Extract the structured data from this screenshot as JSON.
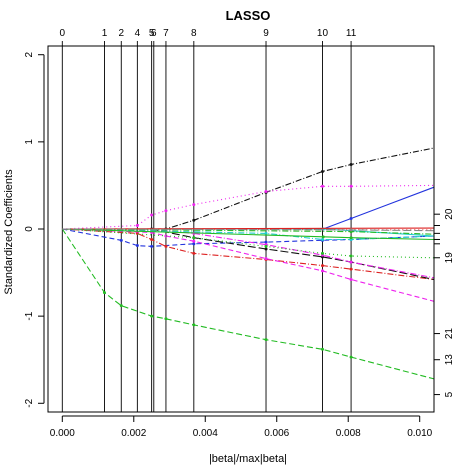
{
  "chart_data": {
    "type": "line",
    "title": "LASSO",
    "xlabel": "|beta|/max|beta|",
    "ylabel": "Standardized Coefficients",
    "xlim": [
      -0.0004,
      0.0104
    ],
    "ylim": [
      -2.1,
      2.1
    ],
    "x_ticks": [
      "0.000",
      "0.002",
      "0.004",
      "0.006",
      "0.008",
      "0.010"
    ],
    "x_tick_values": [
      0,
      0.002,
      0.004,
      0.006,
      0.008,
      0.01
    ],
    "y_ticks": [
      "-2",
      "-1",
      "0",
      "1",
      "2"
    ],
    "y_tick_values": [
      -2,
      -1,
      0,
      1,
      2
    ],
    "step_labels": [
      "0",
      "1",
      "2",
      "4",
      "5",
      "6",
      "7",
      "8",
      "9",
      "10",
      "11"
    ],
    "step_positions": [
      0.0,
      0.00118,
      0.00165,
      0.0021,
      0.0025,
      0.00256,
      0.0029,
      0.00368,
      0.0057,
      0.00728,
      0.00808
    ],
    "right_labels": [
      "20",
      "19",
      "21",
      "13",
      "5"
    ],
    "right_label_values": [
      0.17,
      -0.33,
      -1.2,
      -1.5,
      -1.9
    ],
    "grid": false,
    "series": [
      {
        "color": "#22bb22",
        "dash": "6,3",
        "x": [
          0,
          0.00118,
          0.00165,
          0.0025,
          0.0029,
          0.00368,
          0.0057,
          0.00728,
          0.00808,
          0.0104
        ],
        "y": [
          0,
          -0.73,
          -0.88,
          -1.0,
          -1.03,
          -1.1,
          -1.27,
          -1.38,
          -1.47,
          -1.72
        ]
      },
      {
        "color": "#111111",
        "dash": "6,2,1,2",
        "x": [
          0,
          0.0029,
          0.00368,
          0.0057,
          0.00728,
          0.00808,
          0.0104
        ],
        "y": [
          0,
          0,
          0.1,
          0.42,
          0.66,
          0.74,
          0.93
        ]
      },
      {
        "color": "#ee22ee",
        "dash": "1,3",
        "x": [
          0,
          0.0021,
          0.0025,
          0.0029,
          0.00368,
          0.0057,
          0.00728,
          0.00808,
          0.0104
        ],
        "y": [
          0,
          0.04,
          0.16,
          0.21,
          0.28,
          0.43,
          0.49,
          0.49,
          0.5
        ]
      },
      {
        "color": "#2233dd",
        "dash": "",
        "x": [
          0,
          0.0073,
          0.00808,
          0.0104
        ],
        "y": [
          0,
          0,
          0.12,
          0.48
        ]
      },
      {
        "color": "#2233dd",
        "dash": "5,3",
        "x": [
          0,
          0.00165,
          0.0021,
          0.0025,
          0.00368,
          0.0057,
          0.00728,
          0.00808,
          0.0104
        ],
        "y": [
          0,
          -0.13,
          -0.19,
          -0.2,
          -0.17,
          -0.15,
          -0.13,
          -0.12,
          -0.08
        ]
      },
      {
        "color": "#dd2222",
        "dash": "6,2,1,2",
        "x": [
          0,
          0.0021,
          0.0025,
          0.0029,
          0.00368,
          0.0057,
          0.00728,
          0.00808,
          0.0104
        ],
        "y": [
          0,
          -0.05,
          -0.12,
          -0.2,
          -0.28,
          -0.35,
          -0.42,
          -0.46,
          -0.58
        ]
      },
      {
        "color": "#ee22ee",
        "dash": "5,3",
        "x": [
          0,
          0.0025,
          0.0029,
          0.00368,
          0.0057,
          0.00728,
          0.00808,
          0.0104
        ],
        "y": [
          0,
          -0.04,
          -0.08,
          -0.14,
          -0.34,
          -0.48,
          -0.58,
          -0.83
        ]
      },
      {
        "color": "#111111",
        "dash": "8,3",
        "x": [
          0,
          0.0025,
          0.00368,
          0.0057,
          0.00728,
          0.00808,
          0.0104
        ],
        "y": [
          0,
          0,
          -0.1,
          -0.23,
          -0.32,
          -0.38,
          -0.58
        ]
      },
      {
        "color": "#ee22ee",
        "dash": "6,2,1,2",
        "x": [
          0,
          0.0029,
          0.00368,
          0.0057,
          0.00728,
          0.00808,
          0.0104
        ],
        "y": [
          0,
          -0.02,
          -0.05,
          -0.18,
          -0.3,
          -0.38,
          -0.56
        ]
      },
      {
        "color": "#22bb22",
        "dash": "1,3",
        "x": [
          0,
          0.00368,
          0.0057,
          0.00728,
          0.00808,
          0.0104
        ],
        "y": [
          0,
          -0.1,
          -0.2,
          -0.28,
          -0.31,
          -0.33
        ]
      },
      {
        "color": "#22cccc",
        "dash": "6,2,1,2",
        "x": [
          0,
          0.0057,
          0.00728,
          0.00808,
          0.0104
        ],
        "y": [
          0,
          -0.05,
          -0.12,
          -0.12,
          -0.08
        ]
      },
      {
        "color": "#22bb22",
        "dash": "",
        "x": [
          0,
          0.0073,
          0.00808,
          0.0104
        ],
        "y": [
          0,
          -0.09,
          -0.1,
          -0.12
        ]
      },
      {
        "color": "#22cccc",
        "dash": "",
        "x": [
          0,
          0.0073,
          0.00808,
          0.0104
        ],
        "y": [
          0,
          0,
          -0.02,
          -0.08
        ]
      },
      {
        "color": "#dd2222",
        "dash": "",
        "x": [
          0,
          0.0104
        ],
        "y": [
          0,
          0.01
        ]
      },
      {
        "color": "#dd2222",
        "dash": "1,3",
        "x": [
          0,
          0.0104
        ],
        "y": [
          0,
          -0.01
        ]
      },
      {
        "color": "#22bb22",
        "dash": "6,2,1,2",
        "x": [
          0,
          0.00808,
          0.0104
        ],
        "y": [
          0,
          -0.03,
          -0.06
        ]
      },
      {
        "color": "#888888",
        "dash": "8,3",
        "x": [
          0,
          0.00808,
          0.0104
        ],
        "y": [
          0,
          -0.01,
          -0.02
        ]
      }
    ]
  }
}
